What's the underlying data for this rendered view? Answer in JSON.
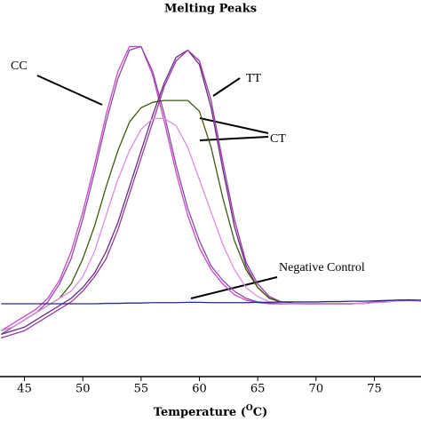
{
  "chart_data": {
    "type": "line",
    "title": "Melting Peaks",
    "xlabel": {
      "text": "Temperature (",
      "superscript": "O",
      "suffix": "C)"
    },
    "x": [
      43,
      44,
      45,
      46,
      47,
      48,
      49,
      50,
      51,
      52,
      53,
      54,
      55,
      56,
      57,
      58,
      59,
      60,
      61,
      62,
      63,
      64,
      65,
      66,
      67,
      68,
      69,
      70,
      71,
      72,
      73,
      74,
      75,
      76,
      77,
      78,
      79
    ],
    "xlim": [
      42.9,
      79
    ],
    "xticks": [
      45,
      50,
      55,
      60,
      65,
      70,
      75
    ],
    "ylim": [
      0,
      100
    ],
    "series": [
      {
        "color": "#cc44cc",
        "values": [
          13,
          15,
          17,
          19,
          22,
          27,
          35,
          46,
          59,
          73,
          85,
          92,
          92,
          84,
          71,
          57,
          45,
          36,
          30,
          26,
          23,
          21.5,
          20.8,
          20.5,
          20.5,
          20.5,
          20.5,
          20.5,
          20.5,
          20.5,
          20.5,
          20.7,
          21,
          21.2,
          21.5,
          21.5,
          21.3
        ]
      },
      {
        "color": "#8a4aa8",
        "values": [
          12,
          14,
          16,
          18,
          21,
          26,
          33,
          44,
          57,
          71,
          83,
          91,
          92,
          85,
          73,
          59,
          47,
          38,
          31,
          27,
          24,
          22,
          21,
          20.7,
          20.5,
          20.5,
          20.5,
          20.5,
          20.5,
          20.5,
          20.5,
          20.6,
          20.9,
          21.2,
          21.4,
          21.5,
          21.3
        ]
      },
      {
        "color": "#6a2a8a",
        "values": [
          12,
          13,
          14,
          16,
          18,
          20,
          22,
          25,
          29,
          35,
          43,
          53,
          63,
          73,
          82,
          89,
          91,
          87,
          75,
          58,
          42,
          31,
          25,
          22,
          21,
          20.6,
          20.5,
          20.5,
          20.5,
          20.5,
          20.5,
          20.6,
          20.9,
          21.2,
          21.5,
          21.6,
          21.4
        ]
      },
      {
        "color": "#9a3a9a",
        "values": [
          11,
          12,
          13,
          15,
          17,
          19,
          21,
          24,
          28,
          33,
          41,
          51,
          61,
          71,
          81,
          88,
          91,
          88,
          77,
          60,
          44,
          32,
          26,
          22.5,
          21,
          20.6,
          20.5,
          20.5,
          20.5,
          20.5,
          20.5,
          20.6,
          20.9,
          21.1,
          21.4,
          21.5,
          21.3
        ]
      },
      {
        "color": "#3e5a10",
        "values": [
          13,
          14,
          16,
          18,
          20,
          22,
          26,
          33,
          42,
          53,
          63,
          71,
          75,
          76.5,
          77,
          77,
          77,
          74,
          64,
          50,
          38,
          30,
          25,
          22,
          21,
          20.6,
          20.5,
          20.5,
          20.5,
          20.5,
          20.5,
          20.6,
          20.8,
          21,
          21.3,
          21.4,
          21.2
        ]
      },
      {
        "color": "#dd8ee0",
        "values": [
          13,
          14,
          16,
          18,
          20,
          22,
          24,
          28,
          35,
          45,
          55,
          63,
          69,
          72,
          72,
          70,
          64,
          55,
          46,
          37,
          30,
          25,
          22.5,
          21,
          20.7,
          20.5,
          20.5,
          20.5,
          20.5,
          20.5,
          20.5,
          20.6,
          20.8,
          21,
          21.3,
          21.4,
          21.2
        ]
      },
      {
        "color": "#2a2a8a",
        "values": [
          20.5,
          20.5,
          20.5,
          20.5,
          20.5,
          20.5,
          20.5,
          20.5,
          20.5,
          20.6,
          20.6,
          20.7,
          20.7,
          20.8,
          20.8,
          20.8,
          20.9,
          20.9,
          20.8,
          20.8,
          20.8,
          20.8,
          20.9,
          20.9,
          21,
          21,
          21,
          21,
          21.1,
          21.1,
          21.2,
          21.2,
          21.3,
          21.4,
          21.5,
          21.5,
          21.5
        ]
      }
    ],
    "annotations": [
      "CC",
      "TT",
      "CT",
      "Negative Control"
    ]
  }
}
